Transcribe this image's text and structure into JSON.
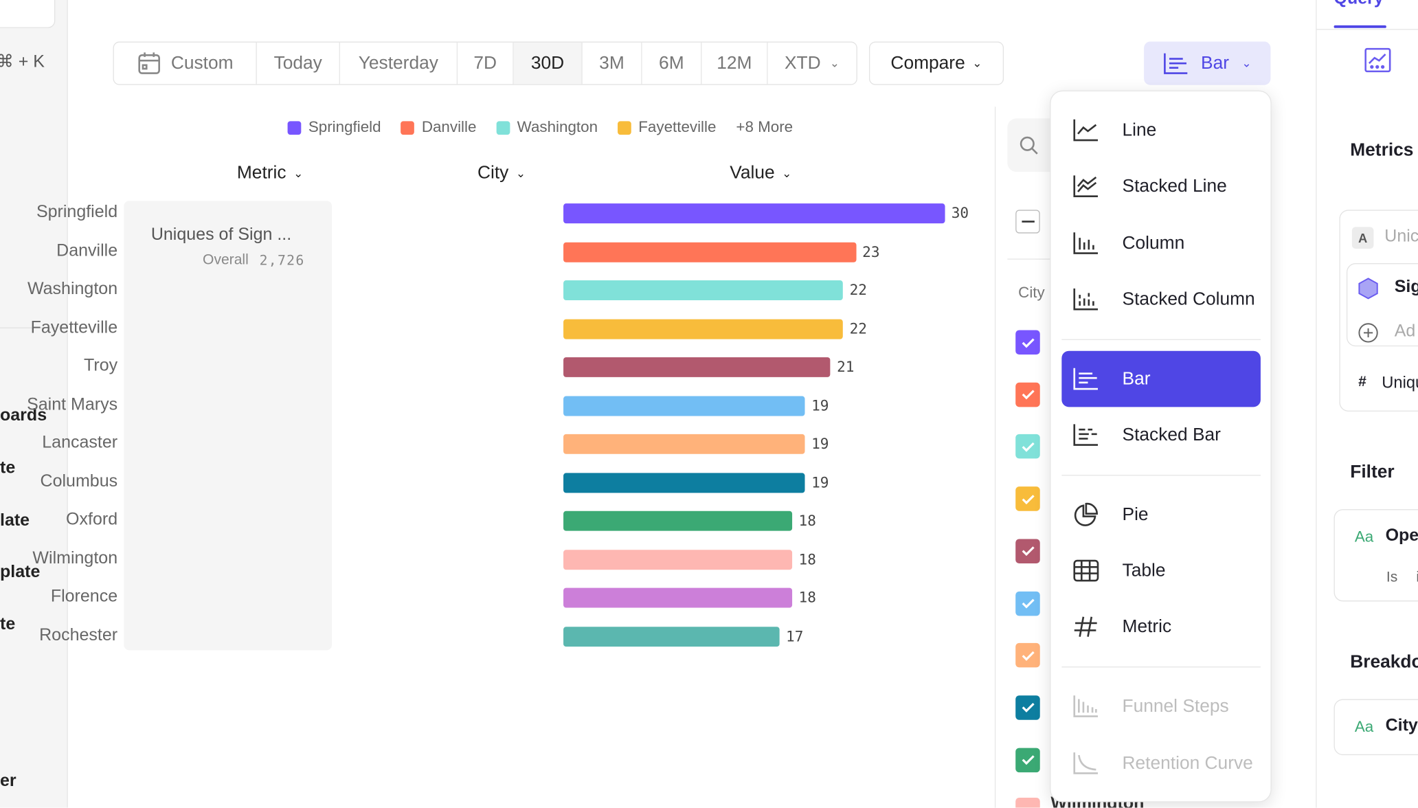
{
  "sidebar": {
    "shortcut": "⌘ + K",
    "items": [
      "oards",
      "te",
      "late",
      "plate",
      "te",
      "er"
    ]
  },
  "timebar": {
    "segments": [
      {
        "label": "Custom",
        "icon": "calendar-icon"
      },
      {
        "label": "Today"
      },
      {
        "label": "Yesterday"
      },
      {
        "label": "7D"
      },
      {
        "label": "30D",
        "selected": true
      },
      {
        "label": "3M"
      },
      {
        "label": "6M"
      },
      {
        "label": "12M"
      },
      {
        "label": "XTD",
        "dropdown": true
      }
    ],
    "compare": "Compare",
    "chart_type": "Bar"
  },
  "legend": {
    "items": [
      "Springfield",
      "Danville",
      "Washington",
      "Fayetteville"
    ],
    "more": "+8 More"
  },
  "headers": {
    "metric": "Metric",
    "city": "City",
    "value": "Value"
  },
  "metric_card": {
    "name": "Uniques of Sign ...",
    "overall_label": "Overall",
    "overall_value": "2,726"
  },
  "chart_data": {
    "type": "bar",
    "orientation": "horizontal",
    "categories": [
      "Springfield",
      "Danville",
      "Washington",
      "Fayetteville",
      "Troy",
      "Saint Marys",
      "Lancaster",
      "Columbus",
      "Oxford",
      "Wilmington",
      "Florence",
      "Rochester"
    ],
    "values": [
      30,
      23,
      22,
      22,
      21,
      19,
      19,
      19,
      18,
      18,
      18,
      17
    ],
    "colors": [
      "#7856ff",
      "#ff7557",
      "#80e1d9",
      "#f8bc3b",
      "#b2596e",
      "#72bef4",
      "#ffb27a",
      "#0d7ea0",
      "#3ba974",
      "#feb7b2",
      "#cc7fd9",
      "#5bb7af"
    ]
  },
  "filter_list": {
    "header": "City",
    "partial_label": "Wilmington",
    "checked": [
      true,
      true,
      true,
      true,
      true,
      true,
      true,
      true,
      true
    ]
  },
  "menu": {
    "groups": [
      [
        {
          "label": "Line",
          "icon": "line-chart-icon"
        },
        {
          "label": "Stacked Line",
          "icon": "stacked-line-icon"
        },
        {
          "label": "Column",
          "icon": "column-chart-icon"
        },
        {
          "label": "Stacked Column",
          "icon": "stacked-column-icon"
        }
      ],
      [
        {
          "label": "Bar",
          "icon": "bar-chart-icon",
          "selected": true
        },
        {
          "label": "Stacked Bar",
          "icon": "stacked-bar-icon"
        }
      ],
      [
        {
          "label": "Pie",
          "icon": "pie-chart-icon"
        },
        {
          "label": "Table",
          "icon": "table-icon"
        },
        {
          "label": "Metric",
          "icon": "hash-icon"
        }
      ],
      [
        {
          "label": "Funnel Steps",
          "icon": "funnel-icon",
          "disabled": true
        },
        {
          "label": "Retention Curve",
          "icon": "retention-curve-icon",
          "disabled": true
        }
      ]
    ]
  },
  "right_panel": {
    "tab": "Query",
    "metrics_title": "Metrics",
    "metric_badge": "A",
    "metric_name": "Unic",
    "event": "Sig",
    "add": "Ad",
    "measure": "Uniqu",
    "measure_icon": "#",
    "filter_title": "Filter",
    "filter_type": "Aa",
    "filter_prop": "Ope",
    "filter_op": "Is",
    "filter_val": "i",
    "breakdown_title": "Breakdo",
    "breakdown_type": "Aa",
    "breakdown_prop": "City"
  },
  "colors": {
    "accent": "#4f46e5",
    "accent_bg": "#e8e8fc",
    "type_green": "#3ba974"
  }
}
